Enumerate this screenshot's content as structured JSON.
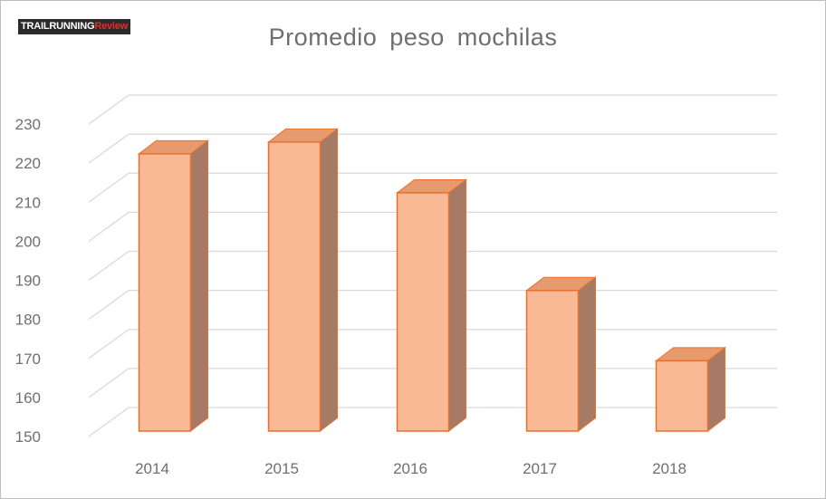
{
  "watermark": {
    "part1": "TRAILRUNNING",
    "part2": "Review"
  },
  "chart_data": {
    "type": "bar",
    "title": "Promedio  peso  mochilas",
    "categories": [
      "2014",
      "2015",
      "2016",
      "2017",
      "2018"
    ],
    "values": [
      221,
      224,
      211,
      186,
      168
    ],
    "ylim": [
      150,
      230
    ],
    "yticks": [
      150,
      160,
      170,
      180,
      190,
      200,
      210,
      220,
      230
    ],
    "xlabel": "",
    "ylabel": "",
    "grid": true,
    "style": "3d-column",
    "colors": {
      "front": "#f9b995",
      "side": "#a77a66",
      "top": "#e79a6e",
      "edge": "#e8702e",
      "grid": "#d9d9d9"
    }
  }
}
